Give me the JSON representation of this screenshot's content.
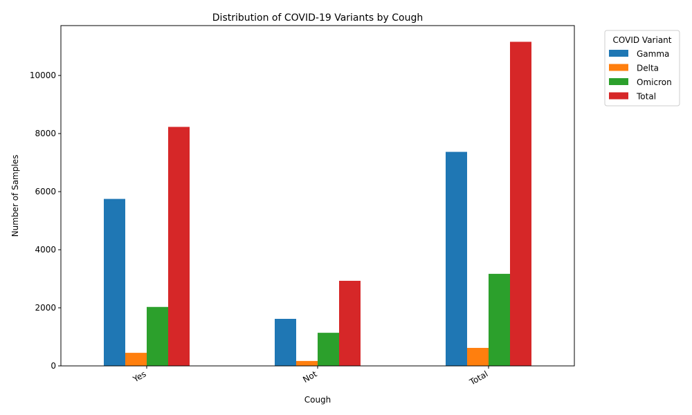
{
  "chart_data": {
    "type": "bar",
    "title": "Distribution of COVID-19 Variants by Cough",
    "xlabel": "Cough",
    "ylabel": "Number of Samples",
    "categories": [
      "Yes",
      "Not",
      "Total"
    ],
    "series": [
      {
        "name": "Gamma",
        "color": "#1f77b4",
        "values": [
          5750,
          1620,
          7370
        ]
      },
      {
        "name": "Delta",
        "color": "#ff7f0e",
        "values": [
          450,
          170,
          620
        ]
      },
      {
        "name": "Omicron",
        "color": "#2ca02c",
        "values": [
          2030,
          1140,
          3170
        ]
      },
      {
        "name": "Total",
        "color": "#d62728",
        "values": [
          8230,
          2930,
          11160
        ]
      }
    ],
    "yticks": [
      0,
      2000,
      4000,
      6000,
      8000,
      10000
    ],
    "ylim": [
      0,
      11718
    ],
    "legend": {
      "title": "COVID Variant",
      "placement": "outside-top-right"
    },
    "grid": false
  }
}
